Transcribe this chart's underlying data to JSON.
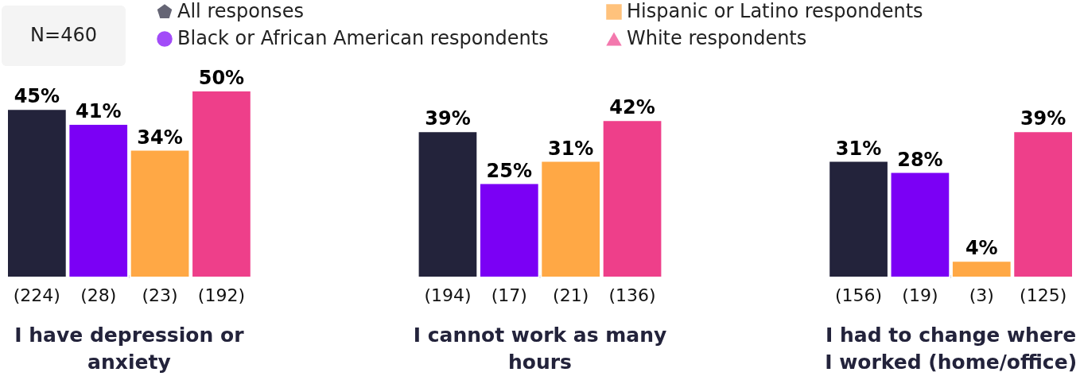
{
  "chart_data": {
    "type": "bar",
    "categories": [
      "I have depression or anxiety",
      "I cannot work as many hours",
      "I had to change where I worked (home/office)"
    ],
    "series": [
      {
        "name": "All responses",
        "color": "#23233b",
        "marker": "pentagon",
        "values": [
          45,
          39,
          31
        ],
        "value_labels": [
          "45%",
          "39%",
          "31%"
        ]
      },
      {
        "name": "Black or African American respondents",
        "color": "#7b00f5",
        "marker": "circle",
        "values": [
          41,
          25,
          28
        ],
        "value_labels": [
          "41%",
          "25%",
          "28%"
        ]
      },
      {
        "name": "Hispanic or Latino respondents",
        "color": "#ffa845",
        "marker": "square",
        "values": [
          34,
          31,
          4
        ],
        "value_labels": [
          "34%",
          "31%",
          "4%"
        ]
      },
      {
        "name": "White respondents",
        "color": "#ee3f8a",
        "marker": "triangle",
        "values": [
          50,
          42,
          39
        ],
        "value_labels": [
          "50%",
          "42%",
          "39%"
        ]
      }
    ],
    "annotations": [
      "N=460",
      "(224)",
      "(28)",
      "(23)",
      "(192)",
      "(194)",
      "(17)",
      "(21)",
      "(136)",
      "(156)",
      "(19)",
      "(3)",
      "(125)"
    ],
    "legend": "top"
  }
}
